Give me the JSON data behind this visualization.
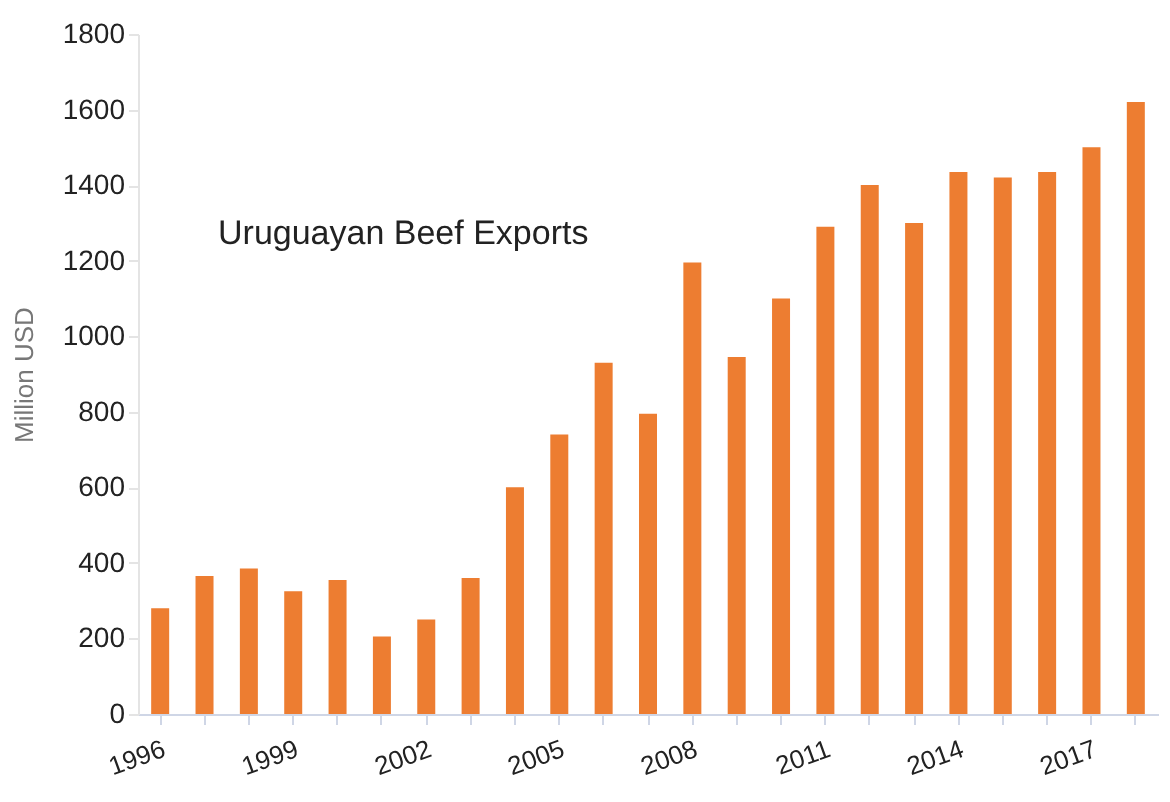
{
  "chart_data": {
    "type": "bar",
    "title": "Uruguayan Beef Exports",
    "ylabel": "Million USD",
    "categories": [
      "1996",
      null,
      null,
      "1999",
      null,
      null,
      "2002",
      null,
      null,
      "2005",
      null,
      null,
      "2008",
      null,
      null,
      "2011",
      null,
      null,
      "2014",
      null,
      null,
      "2017",
      null
    ],
    "values": [
      280,
      365,
      385,
      325,
      355,
      205,
      250,
      360,
      600,
      740,
      930,
      795,
      1195,
      945,
      1100,
      1290,
      1400,
      1300,
      1435,
      1420,
      1435,
      1500,
      1620
    ],
    "color": "#ed7d31",
    "ylim": [
      0,
      1800
    ],
    "yticks": [
      0,
      200,
      400,
      600,
      800,
      1000,
      1200,
      1400,
      1600,
      1800
    ],
    "grid": false
  }
}
